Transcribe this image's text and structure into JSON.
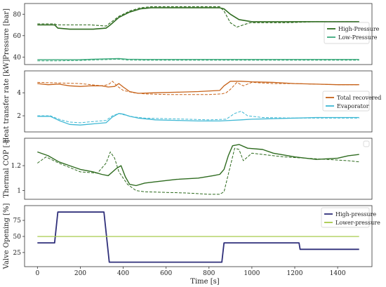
{
  "figure": {
    "xlabel": "Time [s]"
  },
  "chart_data": [
    {
      "type": "line",
      "ylabel": "Pressure [bar]",
      "xlim": [
        -60,
        1560
      ],
      "ylim": [
        33,
        90
      ],
      "yticks": [
        40,
        60,
        80
      ],
      "legend_position": "right",
      "legend": [
        {
          "label": "High-Pressure",
          "color": "#2e6b1f"
        },
        {
          "label": "Low-Pressure",
          "color": "#3daa7d"
        }
      ],
      "series": [
        {
          "name": "High-Pressure",
          "style": "solid",
          "color": "#2e6b1f",
          "width": 1.6,
          "x": [
            0,
            80,
            95,
            150,
            200,
            260,
            320,
            340,
            380,
            430,
            480,
            530,
            580,
            650,
            750,
            850,
            870,
            900,
            940,
            1000,
            1100,
            1200,
            1300,
            1400,
            1500
          ],
          "y": [
            70,
            70,
            67,
            66,
            66,
            66,
            67,
            70,
            77,
            82,
            85,
            86,
            86,
            86,
            86,
            86,
            85,
            80,
            75,
            73,
            73,
            73,
            73,
            73,
            73
          ]
        },
        {
          "name": "High-Pressure",
          "style": "dashed",
          "color": "#2e6b1f",
          "width": 1.1,
          "x": [
            0,
            80,
            90,
            150,
            250,
            320,
            340,
            380,
            430,
            480,
            530,
            650,
            750,
            850,
            870,
            900,
            930,
            960,
            990,
            1050,
            1150,
            1300,
            1500
          ],
          "y": [
            71,
            71,
            70,
            70,
            70,
            69,
            72,
            78,
            83,
            86,
            87,
            87,
            87,
            87,
            83,
            72,
            68,
            70,
            72,
            72,
            72,
            73,
            73
          ]
        },
        {
          "name": "Low-Pressure",
          "style": "solid",
          "color": "#3daa7d",
          "width": 1.4,
          "x": [
            0,
            100,
            200,
            300,
            380,
            420,
            500,
            700,
            900,
            1100,
            1300,
            1500
          ],
          "y": [
            37.5,
            37.5,
            37.6,
            38.2,
            38.6,
            38.0,
            37.8,
            37.8,
            37.8,
            37.8,
            37.8,
            37.8
          ]
        },
        {
          "name": "Low-Pressure",
          "style": "dashed",
          "color": "#3daa7d",
          "width": 1.0,
          "x": [
            0,
            100,
            200,
            300,
            380,
            420,
            500,
            700,
            900,
            1100,
            1300,
            1500
          ],
          "y": [
            36.5,
            36.5,
            36.8,
            37.5,
            38.0,
            37.2,
            37.0,
            37.0,
            37.0,
            37.0,
            37.0,
            37.0
          ]
        }
      ]
    },
    {
      "type": "line",
      "ylabel": "Heat transfer rate [kW]",
      "xlim": [
        -60,
        1560
      ],
      "ylim": [
        0.6,
        5.9
      ],
      "yticks": [
        2,
        4
      ],
      "legend_position": "lower right",
      "legend": [
        {
          "label": "Total recovered",
          "color": "#c7631a"
        },
        {
          "label": "Evaporator",
          "color": "#3fb8d4"
        }
      ],
      "series": [
        {
          "name": "Total recovered",
          "style": "solid",
          "color": "#c7631a",
          "width": 1.3,
          "x": [
            0,
            50,
            100,
            150,
            200,
            250,
            300,
            330,
            360,
            380,
            400,
            430,
            470,
            550,
            650,
            750,
            850,
            870,
            900,
            950,
            1000,
            1100,
            1200,
            1300,
            1400,
            1500
          ],
          "y": [
            4.8,
            4.7,
            4.75,
            4.6,
            4.55,
            4.6,
            4.6,
            4.5,
            4.55,
            4.8,
            4.5,
            4.1,
            3.95,
            4.0,
            4.05,
            4.1,
            4.2,
            4.6,
            5.0,
            5.0,
            4.95,
            4.9,
            4.8,
            4.75,
            4.7,
            4.7
          ]
        },
        {
          "name": "Total recovered",
          "style": "dashed",
          "color": "#c7631a",
          "width": 1.0,
          "x": [
            0,
            100,
            200,
            300,
            330,
            350,
            370,
            400,
            450,
            500,
            600,
            700,
            800,
            860,
            880,
            900,
            930,
            960,
            1000,
            1100,
            1200,
            1300,
            1400,
            1500
          ],
          "y": [
            4.9,
            4.85,
            4.8,
            4.6,
            4.7,
            5.0,
            4.6,
            4.2,
            4.0,
            3.9,
            3.85,
            3.85,
            3.85,
            3.9,
            4.0,
            4.3,
            4.9,
            4.6,
            4.9,
            4.8,
            4.8,
            4.75,
            4.7,
            4.7
          ]
        },
        {
          "name": "Evaporator",
          "style": "solid",
          "color": "#3fb8d4",
          "width": 1.3,
          "x": [
            0,
            60,
            100,
            150,
            200,
            260,
            320,
            350,
            380,
            400,
            430,
            470,
            550,
            650,
            750,
            850,
            900,
            950,
            1000,
            1100,
            1200,
            1300,
            1400,
            1500
          ],
          "y": [
            1.95,
            1.95,
            1.6,
            1.25,
            1.2,
            1.3,
            1.4,
            1.9,
            2.2,
            2.15,
            1.95,
            1.8,
            1.65,
            1.6,
            1.55,
            1.55,
            1.6,
            1.65,
            1.7,
            1.75,
            1.8,
            1.85,
            1.85,
            1.85
          ]
        },
        {
          "name": "Evaporator",
          "style": "dashed",
          "color": "#3fb8d4",
          "width": 1.0,
          "x": [
            0,
            60,
            100,
            150,
            200,
            260,
            320,
            350,
            380,
            400,
            450,
            500,
            600,
            700,
            800,
            880,
            920,
            950,
            980,
            1050,
            1200,
            1350,
            1500
          ],
          "y": [
            2.0,
            2.0,
            1.7,
            1.45,
            1.4,
            1.5,
            1.6,
            2.0,
            2.2,
            2.1,
            1.9,
            1.8,
            1.75,
            1.7,
            1.65,
            1.7,
            2.2,
            2.4,
            2.0,
            1.85,
            1.8,
            1.8,
            1.8
          ]
        }
      ]
    },
    {
      "type": "line",
      "ylabel": "Thermal COP [-]",
      "xlim": [
        -60,
        1560
      ],
      "ylim": [
        0.93,
        1.42
      ],
      "yticks": [
        1.0,
        1.2
      ],
      "legend_position": "upper right",
      "legend": [],
      "series": [
        {
          "name": "",
          "style": "solid",
          "color": "#2e6b1f",
          "width": 1.4,
          "x": [
            0,
            50,
            100,
            150,
            200,
            260,
            300,
            330,
            370,
            390,
            410,
            430,
            460,
            500,
            550,
            650,
            750,
            820,
            850,
            870,
            890,
            910,
            940,
            980,
            1050,
            1100,
            1200,
            1300,
            1400,
            1450,
            1500
          ],
          "y": [
            1.31,
            1.28,
            1.23,
            1.2,
            1.17,
            1.15,
            1.13,
            1.12,
            1.18,
            1.2,
            1.11,
            1.05,
            1.04,
            1.06,
            1.07,
            1.09,
            1.1,
            1.12,
            1.13,
            1.17,
            1.28,
            1.36,
            1.37,
            1.34,
            1.33,
            1.3,
            1.27,
            1.25,
            1.26,
            1.28,
            1.29
          ]
        },
        {
          "name": "",
          "style": "dashed",
          "color": "#2e6b1f",
          "width": 1.0,
          "x": [
            0,
            40,
            100,
            200,
            280,
            320,
            340,
            360,
            380,
            420,
            460,
            500,
            600,
            700,
            800,
            850,
            870,
            900,
            920,
            940,
            960,
            1000,
            1050,
            1150,
            1250,
            1350,
            1450,
            1500
          ],
          "y": [
            1.22,
            1.27,
            1.22,
            1.15,
            1.14,
            1.22,
            1.31,
            1.26,
            1.15,
            1.05,
            1.0,
            0.99,
            0.985,
            0.98,
            0.97,
            0.97,
            0.99,
            1.2,
            1.34,
            1.33,
            1.24,
            1.3,
            1.29,
            1.27,
            1.26,
            1.25,
            1.24,
            1.23
          ]
        }
      ]
    },
    {
      "type": "line",
      "ylabel": "Valve Opening [%]",
      "xlim": [
        -60,
        1560
      ],
      "ylim": [
        3,
        98
      ],
      "yticks": [
        25,
        50,
        75
      ],
      "xticks": [
        0,
        200,
        400,
        600,
        800,
        1000,
        1200,
        1400
      ],
      "legend_position": "upper right",
      "legend": [
        {
          "label": "High-pressure",
          "color": "#2f2f7a"
        },
        {
          "label": "Lower-pressure",
          "color": "#a8c94a"
        }
      ],
      "series": [
        {
          "name": "High-pressure",
          "style": "solid",
          "color": "#2f2f7a",
          "width": 1.8,
          "x": [
            0,
            80,
            95,
            310,
            335,
            860,
            870,
            1220,
            1225,
            1500
          ],
          "y": [
            40,
            40,
            88,
            88,
            10,
            10,
            40,
            40,
            30,
            30
          ]
        },
        {
          "name": "Lower-pressure",
          "style": "solid",
          "color": "#a8c94a",
          "width": 1.2,
          "x": [
            0,
            1500
          ],
          "y": [
            50,
            50
          ]
        }
      ]
    }
  ]
}
